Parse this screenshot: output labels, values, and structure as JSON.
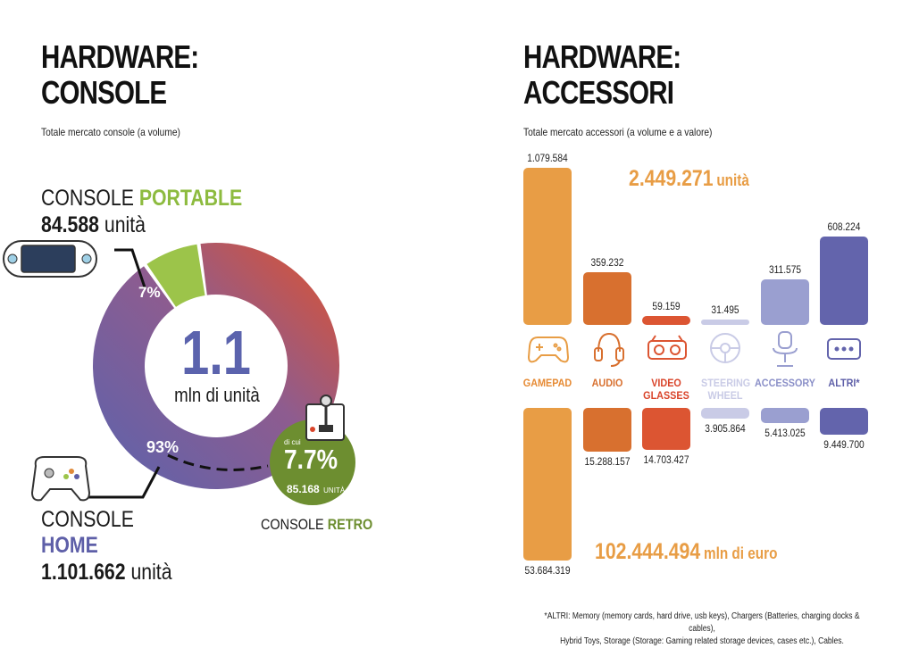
{
  "left": {
    "title_line1": "HARDWARE:",
    "title_line2": "CONSOLE",
    "subtitle": "Totale mercato console (a volume)",
    "portable": {
      "label_a": "CONSOLE",
      "label_b": "PORTABLE",
      "value": "84.588",
      "unit": "unità"
    },
    "home": {
      "label_a": "CONSOLE",
      "label_b": "HOME",
      "value": "1.101.662",
      "unit": "unità"
    },
    "retro": {
      "label_a": "CONSOLE",
      "label_b": "RETRO",
      "di_cui": "di cui",
      "pct": "7.7%",
      "value": "85.168",
      "unit": "UNITÀ"
    },
    "center_big": "1.1",
    "center_small": "mln di unità",
    "pct_portable": "7%",
    "pct_home": "93%"
  },
  "right": {
    "title_line1": "HARDWARE:",
    "title_line2": "ACCESSORI",
    "subtitle": "Totale mercato accessori (a volume e a valore)",
    "total_units_value": "2.449.271",
    "total_units_unit": "unità",
    "total_value_value": "102.444.494",
    "total_value_unit": "mln di euro",
    "footnote_line1": "*ALTRI: Memory (memory cards, hard drive, usb keys), Chargers (Batteries, charging docks & cables),",
    "footnote_line2": "Hybrid Toys, Storage (Storage: Gaming related storage devices, cases etc.), Cables."
  },
  "chart_data": [
    {
      "type": "pie",
      "categories": [
        "CONSOLE PORTABLE",
        "CONSOLE HOME"
      ],
      "values": [
        7,
        93
      ],
      "units": [
        84588,
        1101662
      ],
      "sub_value": {
        "label": "CONSOLE RETRO",
        "pct": 7.7,
        "units": 85168
      },
      "colors": {
        "portable": "#9cc44a",
        "home_start": "#5b63ad",
        "home_end": "#e0522c"
      }
    },
    {
      "type": "bar",
      "categories": [
        "GAMEPAD",
        "AUDIO",
        "VIDEO GLASSES",
        "STEERING WHEEL",
        "ACCESSORY",
        "ALTRI*"
      ],
      "series": [
        {
          "name": "volume",
          "values": [
            1079584,
            359232,
            59159,
            31495,
            311575,
            608224
          ],
          "labels": [
            "1.079.584",
            "359.232",
            "59.159",
            "31.495",
            "311.575",
            "608.224"
          ]
        },
        {
          "name": "valore",
          "values": [
            53684319,
            15288157,
            14703427,
            3905864,
            5413025,
            9449700
          ],
          "labels": [
            "53.684.319",
            "15.288.157",
            "14.703.427",
            "3.905.864",
            "5.413.025",
            "9.449.700"
          ]
        }
      ],
      "colors": [
        "#e89d45",
        "#d8702f",
        "#dc5532",
        "#c9cbe6",
        "#9a9fd0",
        "#6364ac"
      ],
      "label_colors": [
        "#e68a33",
        "#d8702f",
        "#d9442a",
        "#c9cbe6",
        "#8b90c8",
        "#5e5fa8"
      ]
    }
  ]
}
